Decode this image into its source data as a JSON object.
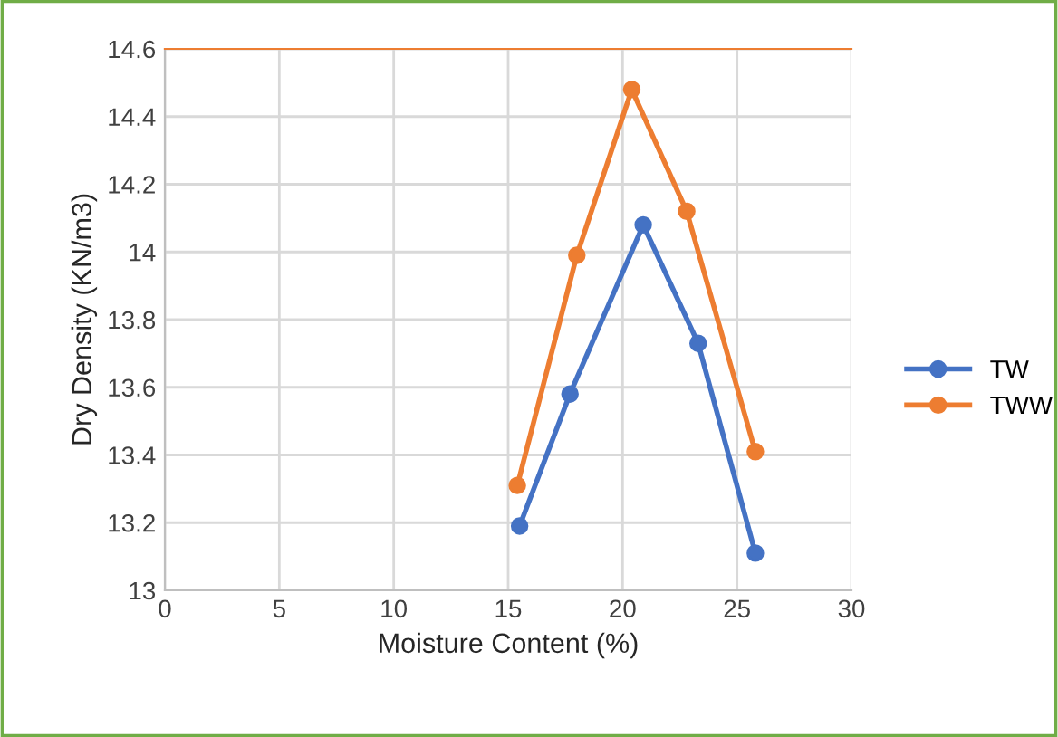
{
  "chart_data": {
    "type": "line",
    "xlabel": "Moisture Content (%)",
    "ylabel": "Dry Density (KN/m3)",
    "xlim": [
      0,
      30
    ],
    "xticks": [
      0,
      5,
      10,
      15,
      20,
      25,
      30
    ],
    "ylim": [
      13,
      14.6
    ],
    "yticks": [
      13,
      13.2,
      13.4,
      13.6,
      13.8,
      14,
      14.2,
      14.4,
      14.6
    ],
    "grid": true,
    "legend": "right",
    "marker": "circle",
    "line_style": "solid",
    "series": [
      {
        "name": "TW",
        "color": "#4472c4",
        "x": [
          15.5,
          17.7,
          20.9,
          23.3,
          25.8
        ],
        "values": [
          13.19,
          13.58,
          14.08,
          13.73,
          13.11
        ]
      },
      {
        "name": "TWW",
        "color": "#ed7d31",
        "x": [
          15.4,
          18.0,
          20.4,
          22.8,
          25.8
        ],
        "values": [
          13.31,
          13.99,
          14.48,
          14.12,
          13.41
        ]
      }
    ]
  }
}
